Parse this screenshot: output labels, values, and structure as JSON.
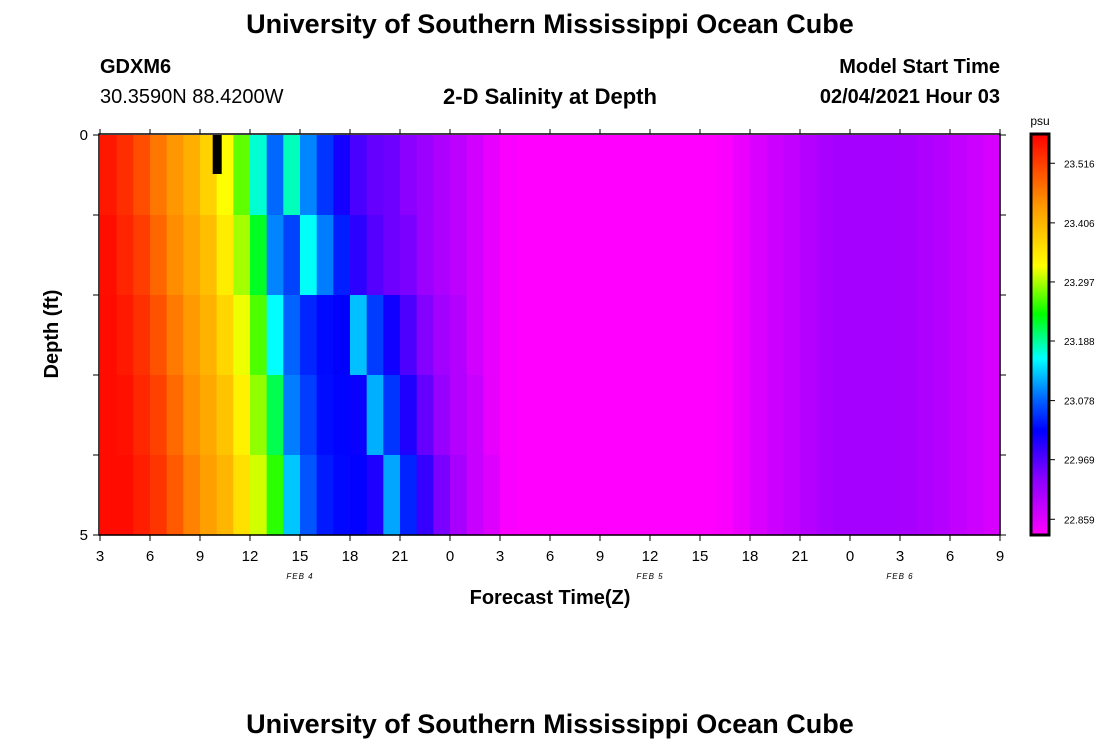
{
  "page": {
    "title_top": "University of Southern Mississippi Ocean Cube",
    "title_bottom": "University of Southern Mississippi Ocean Cube",
    "station_id": "GDXM6",
    "station_coords": "30.3590N 88.4200W",
    "plot_title": "2-D Salinity at Depth",
    "start_label": "Model Start Time",
    "start_value": "02/04/2021 Hour 03"
  },
  "chart_data": {
    "type": "heatmap",
    "title": "2-D Salinity at Depth",
    "xlabel": "Forecast Time(Z)",
    "ylabel": "Depth (ft)",
    "x_tick_labels": [
      "3",
      "6",
      "9",
      "12",
      "15",
      "18",
      "21",
      "0",
      "3",
      "6",
      "9",
      "12",
      "15",
      "18",
      "21",
      "0",
      "3",
      "6",
      "9"
    ],
    "day_labels": [
      "FEB 4",
      "FEB 5",
      "FEB 6"
    ],
    "y_tick_labels": [
      "0",
      "5"
    ],
    "ylim": [
      0,
      5
    ],
    "x_range_hours": [
      0,
      54
    ],
    "depth_levels_ft": [
      0.5,
      1.5,
      2.5,
      3.5,
      4.5
    ],
    "time_step_hours": 1,
    "colorbar": {
      "unit": "psu",
      "tick_labels": [
        "23.516",
        "23.406",
        "23.297",
        "23.188",
        "23.078",
        "22.969",
        "22.859"
      ],
      "min": 22.83,
      "max": 23.57
    },
    "front_hours_by_depth": [
      11.3,
      12.4,
      14.8,
      16.1,
      17.2
    ],
    "marker_hour": 7,
    "salinity_profile": {
      "hours": [
        0,
        2,
        4,
        6,
        8,
        9,
        10,
        12,
        14,
        15,
        16,
        18,
        20,
        22,
        24,
        26,
        28,
        30,
        32,
        34,
        36,
        38,
        40,
        42,
        44,
        46,
        48,
        50,
        52,
        54
      ],
      "surface": [
        23.56,
        23.52,
        23.45,
        23.4,
        23.3,
        23.24,
        23.1,
        23.03,
        23.02,
        23.0,
        22.99,
        22.98,
        22.95,
        22.92,
        22.88,
        22.86,
        22.86,
        22.87,
        22.87,
        22.87,
        22.86,
        22.88,
        22.91,
        22.93,
        22.95,
        22.95,
        22.95,
        22.94,
        22.92,
        22.9
      ],
      "wake_offset": [
        0.13,
        0.07,
        0.03,
        0.0,
        -0.02,
        -0.03,
        -0.03,
        -0.04,
        -0.04,
        -0.04,
        -0.04,
        -0.04,
        -0.04,
        -0.04,
        -0.04,
        -0.04
      ],
      "depth_shift_hours": [
        0.0,
        0.4,
        0.9,
        1.3,
        1.7
      ]
    }
  }
}
